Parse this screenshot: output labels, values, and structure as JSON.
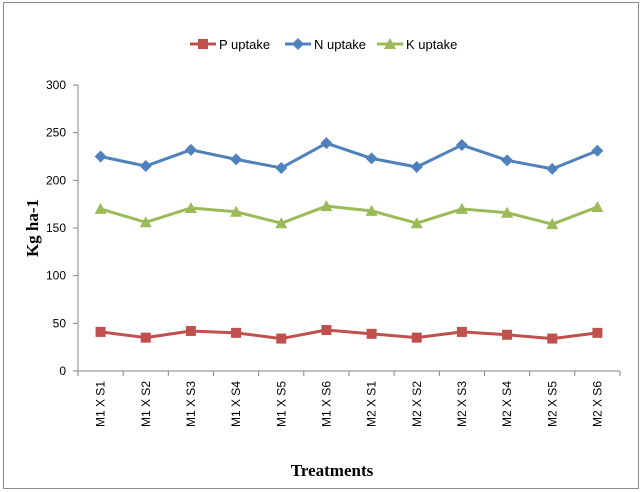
{
  "chart_data": {
    "type": "line",
    "title": "",
    "xlabel": "Treatments",
    "ylabel": "Kg ha-1",
    "ylim": [
      0,
      300
    ],
    "yticks": [
      0,
      50,
      100,
      150,
      200,
      250,
      300
    ],
    "grid": false,
    "legend_position": "top",
    "categories": [
      "M1 X S1",
      "M1 X S2",
      "M1 X S3",
      "M1 X S4",
      "M1 X S5",
      "M1 X S6",
      "M2 X S1",
      "M2 X S2",
      "M2 X S3",
      "M2 X S4",
      "M2 X S5",
      "M2 X S6"
    ],
    "series": [
      {
        "name": "P uptake",
        "color": "#c0504d",
        "marker": "square",
        "values": [
          41,
          35,
          42,
          40,
          34,
          43,
          39,
          35,
          41,
          38,
          34,
          40
        ]
      },
      {
        "name": "N uptake",
        "color": "#4f81bd",
        "marker": "diamond",
        "values": [
          225,
          215,
          232,
          222,
          213,
          239,
          223,
          214,
          237,
          221,
          212,
          231
        ]
      },
      {
        "name": "K uptake",
        "color": "#9bbb59",
        "marker": "triangle",
        "values": [
          170,
          156,
          171,
          167,
          155,
          173,
          168,
          155,
          170,
          166,
          154,
          172
        ]
      }
    ]
  }
}
